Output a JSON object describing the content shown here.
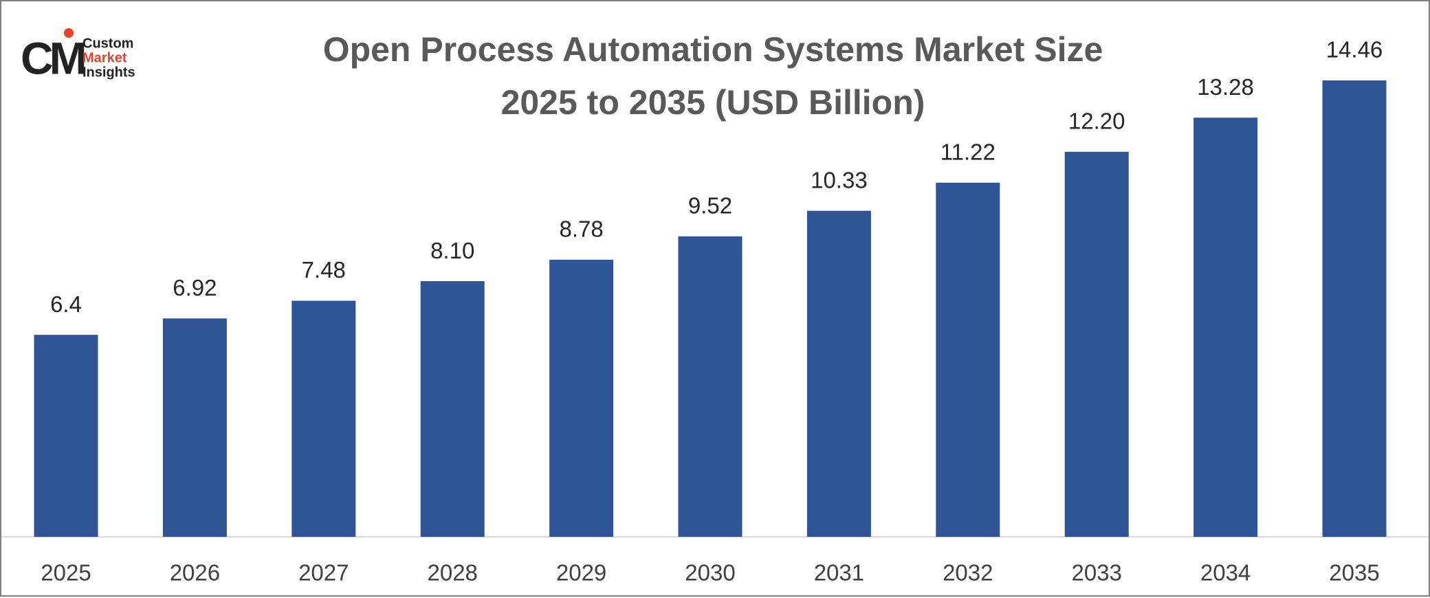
{
  "chart_data": {
    "type": "bar",
    "title": [
      "Open Process Automation Systems Market Size",
      "2025 to 2035 (USD Billion)"
    ],
    "logo": {
      "mark": "CM",
      "lines": [
        "Custom",
        "Market",
        "Insights"
      ]
    },
    "categories": [
      "2025",
      "2026",
      "2027",
      "2028",
      "2029",
      "2030",
      "2031",
      "2032",
      "2033",
      "2034",
      "2035"
    ],
    "values": [
      6.4,
      6.92,
      7.48,
      8.1,
      8.78,
      9.52,
      10.33,
      11.22,
      12.2,
      13.28,
      14.46
    ],
    "value_labels": [
      "6.4",
      "6.92",
      "7.48",
      "8.10",
      "8.78",
      "9.52",
      "10.33",
      "11.22",
      "12.20",
      "13.28",
      "14.46"
    ],
    "color": "#2f5597"
  }
}
